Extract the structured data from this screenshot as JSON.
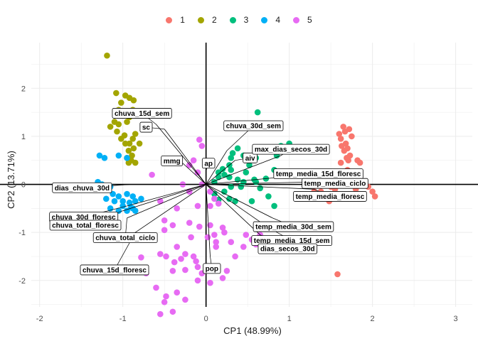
{
  "chart_data": {
    "type": "scatter",
    "title": "",
    "xlabel": "CP1 (48.99%)",
    "ylabel": "CP2 (13.71%)",
    "xlim": [
      -2.1,
      3.2
    ],
    "ylim": [
      -2.55,
      2.95
    ],
    "x_ticks": [
      -2,
      -1,
      0,
      1,
      2,
      3
    ],
    "y_ticks": [
      -2,
      -1,
      0,
      1,
      2
    ],
    "grid": true,
    "legend_position": "top",
    "series": [
      {
        "name": "1",
        "color": "#F8766D",
        "points": [
          [
            1.65,
            1.2
          ],
          [
            1.67,
            1.1
          ],
          [
            1.72,
            1.15
          ],
          [
            1.6,
            1.05
          ],
          [
            1.62,
            0.95
          ],
          [
            1.75,
            1.0
          ],
          [
            1.68,
            0.85
          ],
          [
            1.63,
            0.8
          ],
          [
            1.7,
            0.75
          ],
          [
            1.66,
            0.7
          ],
          [
            1.73,
            0.6
          ],
          [
            1.69,
            0.55
          ],
          [
            1.71,
            0.5
          ],
          [
            1.82,
            0.5
          ],
          [
            1.85,
            0.45
          ],
          [
            1.62,
            0.45
          ],
          [
            1.78,
            0.05
          ],
          [
            1.88,
            0.0
          ],
          [
            1.95,
            -0.05
          ],
          [
            2.0,
            -0.15
          ],
          [
            2.03,
            -0.25
          ],
          [
            1.8,
            -0.1
          ],
          [
            1.55,
            -0.1
          ],
          [
            1.45,
            0.0
          ],
          [
            1.5,
            -0.05
          ],
          [
            1.38,
            -0.15
          ],
          [
            1.3,
            -0.15
          ],
          [
            1.5,
            -0.3
          ],
          [
            1.48,
            -0.35
          ],
          [
            1.58,
            -1.87
          ],
          [
            1.7,
            0.3
          ]
        ]
      },
      {
        "name": "2",
        "color": "#A3A500",
        "points": [
          [
            -1.19,
            2.68
          ],
          [
            -1.08,
            1.9
          ],
          [
            -0.97,
            1.85
          ],
          [
            -0.92,
            1.8
          ],
          [
            -0.87,
            1.75
          ],
          [
            -1.02,
            1.7
          ],
          [
            -1.05,
            1.55
          ],
          [
            -0.88,
            1.55
          ],
          [
            -0.97,
            1.5
          ],
          [
            -0.92,
            1.4
          ],
          [
            -1.1,
            1.3
          ],
          [
            -1.05,
            1.25
          ],
          [
            -0.95,
            1.3
          ],
          [
            -1.15,
            1.2
          ],
          [
            -1.07,
            1.1
          ],
          [
            -0.85,
            1.05
          ],
          [
            -0.98,
            1.02
          ],
          [
            -0.88,
            0.95
          ],
          [
            -0.92,
            0.85
          ],
          [
            -0.97,
            0.85
          ],
          [
            -0.87,
            0.75
          ],
          [
            -0.93,
            0.7
          ],
          [
            -0.89,
            0.6
          ],
          [
            -0.95,
            0.55
          ],
          [
            -0.9,
            0.5
          ],
          [
            -0.93,
            0.45
          ],
          [
            -0.85,
            0.45
          ],
          [
            -1.02,
            0.95
          ],
          [
            -0.8,
            0.85
          ]
        ]
      },
      {
        "name": "3",
        "color": "#00BF7D",
        "points": [
          [
            0.62,
            1.5
          ],
          [
            0.38,
            0.75
          ],
          [
            0.32,
            0.65
          ],
          [
            0.3,
            0.55
          ],
          [
            0.45,
            0.6
          ],
          [
            0.28,
            0.4
          ],
          [
            0.52,
            0.4
          ],
          [
            0.6,
            0.55
          ],
          [
            0.9,
            0.8
          ],
          [
            0.85,
            0.6
          ],
          [
            1.0,
            0.85
          ],
          [
            0.82,
            0.3
          ],
          [
            0.3,
            0.3
          ],
          [
            0.22,
            0.2
          ],
          [
            0.15,
            0.25
          ],
          [
            0.15,
            0.15
          ],
          [
            0.28,
            0.15
          ],
          [
            0.38,
            0.1
          ],
          [
            0.58,
            0.1
          ],
          [
            0.72,
            0.12
          ],
          [
            0.3,
            -0.05
          ],
          [
            0.42,
            -0.05
          ],
          [
            0.6,
            0.05
          ],
          [
            0.65,
            -0.08
          ],
          [
            0.22,
            -0.15
          ],
          [
            0.28,
            -0.3
          ],
          [
            0.15,
            -0.32
          ],
          [
            0.1,
            -0.2
          ],
          [
            0.35,
            -0.35
          ],
          [
            0.55,
            -0.35
          ],
          [
            0.75,
            -0.25
          ],
          [
            0.82,
            -0.45
          ],
          [
            0.45,
            0.05
          ],
          [
            0.48,
            0.25
          ],
          [
            0.1,
            0.05
          ],
          [
            0.2,
            0.32
          ]
        ]
      },
      {
        "name": "4",
        "color": "#00B0F6",
        "points": [
          [
            -1.28,
            0.6
          ],
          [
            -1.22,
            0.55
          ],
          [
            -1.05,
            0.6
          ],
          [
            -0.95,
            0.55
          ],
          [
            -1.3,
            0.05
          ],
          [
            -1.25,
            0.0
          ],
          [
            -1.15,
            -0.05
          ],
          [
            -1.12,
            -0.2
          ],
          [
            -1.05,
            -0.25
          ],
          [
            -0.95,
            -0.2
          ],
          [
            -0.88,
            -0.25
          ],
          [
            -0.85,
            -0.35
          ],
          [
            -1.2,
            -0.3
          ],
          [
            -1.1,
            -0.35
          ],
          [
            -1.0,
            -0.35
          ],
          [
            -0.92,
            -0.38
          ],
          [
            -1.0,
            -0.45
          ],
          [
            -0.9,
            -0.48
          ],
          [
            -0.78,
            -0.3
          ],
          [
            -0.85,
            -0.55
          ],
          [
            -1.15,
            -0.5
          ],
          [
            -1.05,
            -0.55
          ],
          [
            -0.95,
            -0.55
          ],
          [
            -0.88,
            -0.5
          ]
        ]
      },
      {
        "name": "5",
        "color": "#E76BF3",
        "points": [
          [
            -0.08,
            0.93
          ],
          [
            -0.05,
            0.8
          ],
          [
            -0.15,
            0.5
          ],
          [
            -0.2,
            0.4
          ],
          [
            -0.1,
            0.25
          ],
          [
            -0.05,
            0.0
          ],
          [
            -0.28,
            0.0
          ],
          [
            -0.65,
            0.2
          ],
          [
            -0.55,
            -0.35
          ],
          [
            0.1,
            -0.3
          ],
          [
            0.05,
            -0.15
          ],
          [
            -0.2,
            -0.15
          ],
          [
            0.15,
            -0.4
          ],
          [
            0.05,
            -0.45
          ],
          [
            -0.1,
            -0.45
          ],
          [
            -0.35,
            -0.5
          ],
          [
            -0.5,
            -0.75
          ],
          [
            -0.4,
            -0.85
          ],
          [
            -0.5,
            -0.95
          ],
          [
            -0.2,
            -0.8
          ],
          [
            -0.08,
            -0.88
          ],
          [
            0.05,
            -0.85
          ],
          [
            0.1,
            -1.05
          ],
          [
            0.2,
            -0.9
          ],
          [
            0.02,
            -1.1
          ],
          [
            0.12,
            -1.2
          ],
          [
            -0.35,
            -1.3
          ],
          [
            -0.25,
            -1.45
          ],
          [
            -0.15,
            -1.5
          ],
          [
            -0.12,
            -1.6
          ],
          [
            -0.3,
            -1.55
          ],
          [
            -0.38,
            -1.62
          ],
          [
            -0.4,
            -1.8
          ],
          [
            -0.25,
            -1.78
          ],
          [
            -0.1,
            -1.72
          ],
          [
            -0.05,
            -1.85
          ],
          [
            0.05,
            -2.05
          ],
          [
            0.2,
            -1.95
          ],
          [
            0.25,
            -1.8
          ],
          [
            0.35,
            -1.5
          ],
          [
            0.45,
            -1.3
          ],
          [
            0.6,
            -1.25
          ],
          [
            0.55,
            -1.15
          ],
          [
            0.48,
            -1.05
          ],
          [
            0.65,
            -1.05
          ],
          [
            0.72,
            -1.35
          ],
          [
            -0.48,
            -2.33
          ],
          [
            -0.35,
            -2.25
          ],
          [
            -0.25,
            -2.4
          ],
          [
            -0.55,
            -2.7
          ],
          [
            -0.4,
            -2.65
          ],
          [
            -0.5,
            -2.45
          ],
          [
            -0.6,
            -2.15
          ],
          [
            -0.72,
            -1.85
          ],
          [
            -0.78,
            -1.52
          ],
          [
            -0.55,
            -1.45
          ],
          [
            -0.48,
            -1.5
          ],
          [
            -0.1,
            -2.0
          ],
          [
            0.12,
            -1.3
          ],
          [
            0.3,
            -1.2
          ],
          [
            0.22,
            -1.0
          ],
          [
            -0.18,
            -1.1
          ]
        ]
      }
    ],
    "vectors": [
      {
        "label": "chuva_15d_sem",
        "end": [
          -0.6,
          1.25
        ],
        "label_pos": [
          -0.77,
          1.48
        ]
      },
      {
        "label": "sc",
        "end": [
          -0.5,
          1.15
        ],
        "label_pos": [
          -0.72,
          1.19
        ]
      },
      {
        "label": "mmg",
        "end": [
          -0.35,
          0.55
        ],
        "label_pos": [
          -0.41,
          0.49
        ]
      },
      {
        "label": "ap",
        "end": [
          0.0,
          0.28
        ],
        "label_pos": [
          0.03,
          0.44
        ]
      },
      {
        "label": "chuva_30d_sem",
        "end": [
          0.25,
          0.7
        ],
        "label_pos": [
          0.57,
          1.22
        ]
      },
      {
        "label": "aiv",
        "end": [
          0.35,
          0.5
        ],
        "label_pos": [
          0.53,
          0.55
        ]
      },
      {
        "label": "max_dias_secos_30d",
        "end": [
          0.9,
          0.6
        ],
        "label_pos": [
          1.02,
          0.73
        ]
      },
      {
        "label": "temp_media_15d_floresc",
        "end": [
          1.2,
          0.2
        ],
        "label_pos": [
          1.35,
          0.22
        ]
      },
      {
        "label": "temp_media_ciclo",
        "end": [
          1.3,
          0.05
        ],
        "label_pos": [
          1.55,
          0.02
        ]
      },
      {
        "label": "temp_media_floresc",
        "end": [
          1.3,
          -0.1
        ],
        "label_pos": [
          1.49,
          -0.25
        ]
      },
      {
        "label": "temp_media_30d_sem",
        "end": [
          0.8,
          -0.7
        ],
        "label_pos": [
          1.05,
          -0.88
        ]
      },
      {
        "label": "temp_media_15d_sem",
        "end": [
          0.75,
          -0.9
        ],
        "label_pos": [
          1.03,
          -1.17
        ]
      },
      {
        "label": "dias_secos_30d",
        "end": [
          0.65,
          -1.05
        ],
        "label_pos": [
          0.98,
          -1.34
        ]
      },
      {
        "label": "pop",
        "end": [
          0.05,
          -1.5
        ],
        "label_pos": [
          0.07,
          -1.75
        ]
      },
      {
        "label": "dias_chuva_30d",
        "end": [
          -0.9,
          0.0
        ],
        "label_pos": [
          -1.49,
          -0.07
        ]
      },
      {
        "label": "chuva_30d_floresc",
        "end": [
          -0.95,
          -0.45
        ],
        "label_pos": [
          -1.47,
          -0.68
        ]
      },
      {
        "label": "chuva_total_floresc",
        "end": [
          -1.0,
          -0.55
        ],
        "label_pos": [
          -1.45,
          -0.85
        ]
      },
      {
        "label": "chuva_total_ciclo",
        "end": [
          -0.95,
          -0.7
        ],
        "label_pos": [
          -0.97,
          -1.11
        ]
      },
      {
        "label": "chuva_15d_floresc",
        "end": [
          -0.85,
          -1.0
        ],
        "label_pos": [
          -1.1,
          -1.78
        ]
      }
    ]
  }
}
